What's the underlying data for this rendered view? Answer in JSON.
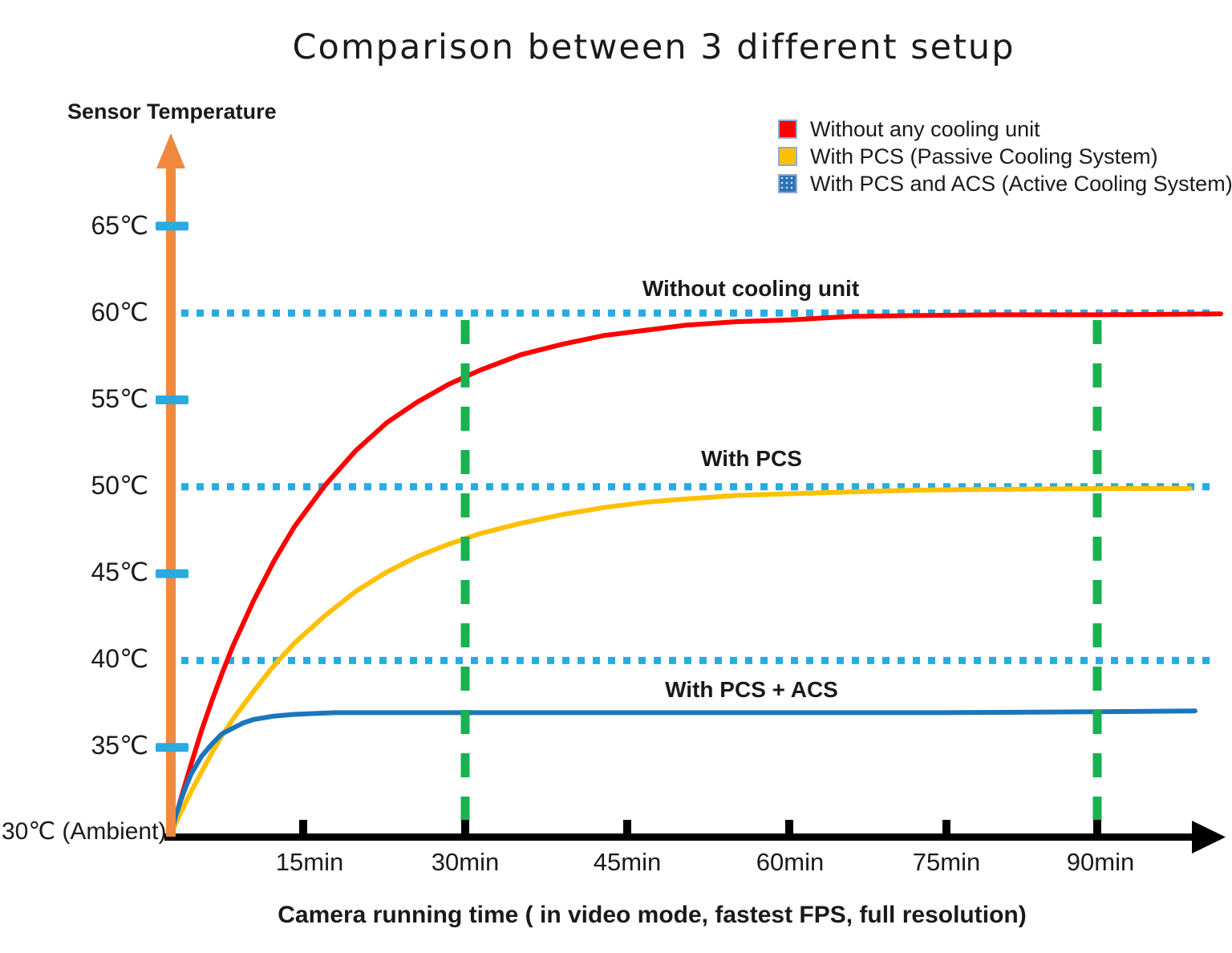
{
  "title": "Comparison between 3 different setup",
  "legend": {
    "items": [
      {
        "label": "Without any cooling unit",
        "color": "#FF0000"
      },
      {
        "label": "With PCS (Passive Cooling System)",
        "color": "#FFC000"
      },
      {
        "label": "With PCS and ACS (Active Cooling System)",
        "color": "#2E75B6"
      }
    ]
  },
  "colors": {
    "y_axis_orange": "#F0883E",
    "x_axis_black": "#000000",
    "cyan_tick": "#29ABE2",
    "cyan_dotted": "#29ABE2",
    "green_marker": "#1AB150"
  },
  "chart_data": {
    "type": "line",
    "title": "Comparison between 3 different setup",
    "xlabel": "Camera running time ( in video mode, fastest FPS, full resolution)",
    "ylabel": "Sensor Temperature",
    "origin_label": "30℃ (Ambient)",
    "x_unit": "min",
    "xlim": [
      0,
      102
    ],
    "ylim": [
      30,
      67
    ],
    "x_ticks": [
      15,
      30,
      45,
      60,
      75,
      90
    ],
    "x_tick_labels": [
      "15min",
      "30min",
      "45min",
      "60min",
      "75min",
      "90min"
    ],
    "y_ticks": [
      65,
      60,
      55,
      50,
      45,
      40,
      35
    ],
    "y_tick_labels": [
      "65℃",
      "60℃",
      "55℃",
      "50℃",
      "45℃",
      "40℃",
      "35℃"
    ],
    "ambient_c": 30,
    "grid": false,
    "legend_position": "top-right",
    "asymptote_lines_c": [
      60,
      50,
      40
    ],
    "marker_lines_min": [
      30,
      90
    ],
    "series": [
      {
        "name": "Without any cooling unit",
        "annotation": "Without cooling unit",
        "color": "#FF0000",
        "saturation_c": 60,
        "points": [
          [
            0,
            30
          ],
          [
            1,
            32.1
          ],
          [
            2,
            34.1
          ],
          [
            3,
            36.0
          ],
          [
            4,
            37.7
          ],
          [
            5,
            39.3
          ],
          [
            6,
            40.8
          ],
          [
            8,
            43.4
          ],
          [
            10,
            45.7
          ],
          [
            12,
            47.7
          ],
          [
            15,
            50.1
          ],
          [
            18,
            52.1
          ],
          [
            21,
            53.7
          ],
          [
            24,
            54.9
          ],
          [
            27,
            55.9
          ],
          [
            30,
            56.7
          ],
          [
            34,
            57.6
          ],
          [
            38,
            58.2
          ],
          [
            42,
            58.7
          ],
          [
            46,
            59.0
          ],
          [
            50,
            59.3
          ],
          [
            55,
            59.5
          ],
          [
            60,
            59.6
          ],
          [
            66,
            59.8
          ],
          [
            72,
            59.85
          ],
          [
            80,
            59.9
          ],
          [
            90,
            59.9
          ],
          [
            102,
            59.95
          ]
        ]
      },
      {
        "name": "With PCS (Passive Cooling System)",
        "annotation": "With PCS",
        "color": "#FFC000",
        "saturation_c": 50,
        "points": [
          [
            0,
            30
          ],
          [
            1,
            31.3
          ],
          [
            2,
            32.5
          ],
          [
            3,
            33.6
          ],
          [
            4,
            34.7
          ],
          [
            5,
            35.7
          ],
          [
            6,
            36.6
          ],
          [
            8,
            38.2
          ],
          [
            10,
            39.7
          ],
          [
            12,
            41.0
          ],
          [
            15,
            42.6
          ],
          [
            18,
            44.0
          ],
          [
            21,
            45.1
          ],
          [
            24,
            46.0
          ],
          [
            27,
            46.7
          ],
          [
            30,
            47.3
          ],
          [
            34,
            47.9
          ],
          [
            38,
            48.4
          ],
          [
            42,
            48.8
          ],
          [
            46,
            49.1
          ],
          [
            50,
            49.3
          ],
          [
            55,
            49.5
          ],
          [
            60,
            49.6
          ],
          [
            66,
            49.7
          ],
          [
            72,
            49.8
          ],
          [
            80,
            49.85
          ],
          [
            90,
            49.9
          ],
          [
            99,
            49.9
          ]
        ]
      },
      {
        "name": "With PCS and ACS (Active Cooling System)",
        "annotation": "With PCS + ACS",
        "color": "#1B75BC",
        "saturation_c": 37,
        "points": [
          [
            0,
            30
          ],
          [
            0.5,
            31.1
          ],
          [
            1,
            32.0
          ],
          [
            1.5,
            32.8
          ],
          [
            2,
            33.5
          ],
          [
            2.5,
            34.0
          ],
          [
            3,
            34.5
          ],
          [
            4,
            35.2
          ],
          [
            5,
            35.8
          ],
          [
            6,
            36.1
          ],
          [
            7,
            36.4
          ],
          [
            8,
            36.6
          ],
          [
            10,
            36.8
          ],
          [
            12,
            36.9
          ],
          [
            16,
            37.0
          ],
          [
            20,
            37.0
          ],
          [
            30,
            37.0
          ],
          [
            45,
            37.0
          ],
          [
            60,
            37.0
          ],
          [
            75,
            37.0
          ],
          [
            90,
            37.05
          ],
          [
            99.5,
            37.1
          ]
        ]
      }
    ]
  }
}
